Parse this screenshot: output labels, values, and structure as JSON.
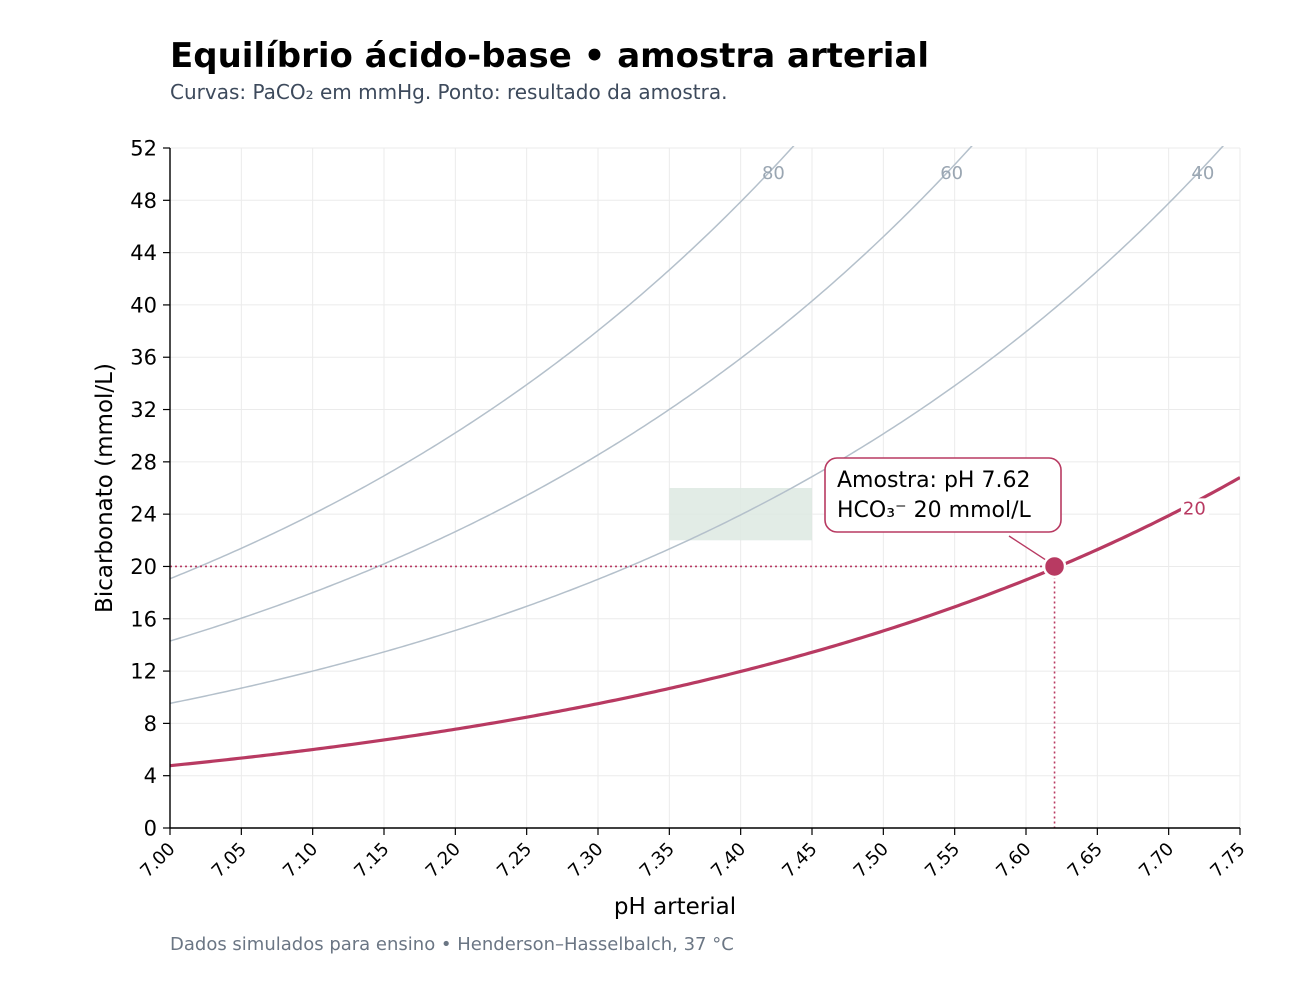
{
  "header": {
    "title": "Equilíbrio ácido-base • amostra arterial",
    "subtitle": "Curvas: PaCO₂ em mmHg. Ponto: resultado da amostra."
  },
  "footer": {
    "note": "Dados simulados para ensino • Henderson–Hasselbalch, 37 °C"
  },
  "chart_data": {
    "type": "line",
    "xlabel": "pH arterial",
    "ylabel": "Bicarbonato (mmol/L)",
    "xlim": [
      7.0,
      7.75
    ],
    "ylim": [
      0,
      52
    ],
    "x_ticks": [
      "7.00",
      "7.05",
      "7.10",
      "7.15",
      "7.20",
      "7.25",
      "7.30",
      "7.35",
      "7.40",
      "7.45",
      "7.50",
      "7.55",
      "7.60",
      "7.65",
      "7.70",
      "7.75"
    ],
    "y_ticks": [
      "0",
      "4",
      "8",
      "12",
      "16",
      "20",
      "24",
      "28",
      "32",
      "36",
      "40",
      "44",
      "48",
      "52"
    ],
    "grid": true,
    "series": [
      {
        "name": "80",
        "paco2": 80,
        "color": "#b4c0cb",
        "highlight": false
      },
      {
        "name": "60",
        "paco2": 60,
        "color": "#b4c0cb",
        "highlight": false
      },
      {
        "name": "40",
        "paco2": 40,
        "color": "#b4c0cb",
        "highlight": false
      },
      {
        "name": "20",
        "paco2": 20,
        "color": "#b83a62",
        "highlight": true
      }
    ],
    "normal_range": {
      "ph": [
        7.35,
        7.45
      ],
      "hco3": [
        22,
        26
      ],
      "color": "#dde9e2"
    },
    "sample": {
      "ph": 7.62,
      "hco3": 20,
      "color": "#b83a62"
    },
    "annotation": {
      "line1": "Amostra: pH 7.62",
      "line2": "HCO₃⁻ 20 mmol/L"
    }
  }
}
